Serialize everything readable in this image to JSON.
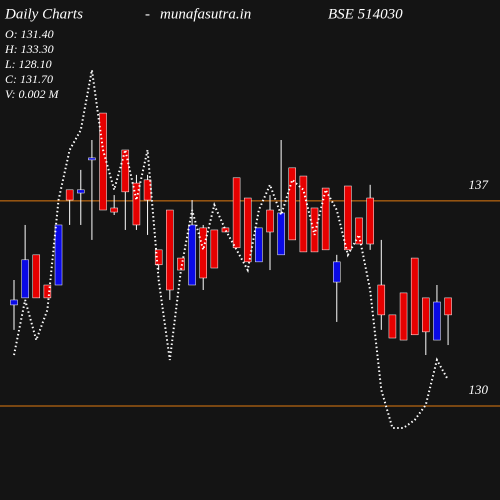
{
  "chart_data": {
    "type": "candlestick",
    "title": "Daily Charts",
    "separator": "-",
    "site": "munafasutra.in",
    "symbol": "BSE 514030",
    "info": [
      "O: 131.40",
      "H: 133.30",
      "L: 128.10",
      "C: 131.70",
      "V: 0.002  M"
    ],
    "open": [
      133.45,
      133.69,
      135.16,
      134.13,
      134.13,
      137.38,
      137.27,
      138.4,
      140.0,
      136.76,
      138.74,
      137.61,
      137.72,
      135.33,
      136.69,
      135.05,
      134.13,
      136.08,
      136.01,
      136.08,
      137.79,
      137.1,
      134.92,
      136.69,
      135.16,
      138.13,
      137.85,
      136.76,
      137.44,
      134.23,
      137.51,
      136.42,
      137.1,
      134.13,
      133.11,
      133.86,
      135.05,
      133.69,
      132.25,
      133.69
    ],
    "high": [
      134.3,
      136.18,
      135.16,
      134.13,
      136.18,
      137.38,
      138.06,
      139.08,
      140.0,
      137.2,
      138.74,
      137.89,
      137.89,
      135.33,
      136.69,
      135.05,
      137.03,
      136.18,
      136.01,
      136.08,
      137.79,
      137.1,
      136.08,
      137.2,
      139.08,
      138.13,
      137.85,
      136.76,
      137.44,
      135.16,
      137.51,
      136.42,
      137.55,
      135.67,
      133.11,
      133.86,
      135.05,
      133.69,
      134.13,
      133.69
    ],
    "low": [
      132.6,
      133.69,
      133.69,
      133.69,
      134.13,
      136.18,
      136.18,
      135.67,
      136.69,
      136.52,
      136.01,
      136.01,
      135.84,
      134.64,
      133.62,
      134.64,
      134.13,
      133.96,
      134.71,
      135.94,
      135.4,
      134.92,
      134.92,
      134.64,
      135.16,
      135.67,
      135.26,
      135.26,
      135.33,
      132.87,
      135.33,
      135.53,
      135.33,
      132.6,
      132.32,
      132.25,
      132.43,
      131.74,
      132.25,
      132.08
    ],
    "close": [
      133.62,
      134.99,
      133.69,
      133.69,
      136.18,
      137.03,
      137.38,
      138.47,
      136.69,
      136.62,
      137.31,
      136.18,
      137.03,
      134.82,
      133.96,
      134.64,
      136.18,
      134.37,
      134.71,
      135.94,
      135.4,
      134.92,
      136.08,
      135.94,
      136.59,
      135.67,
      135.26,
      135.26,
      135.33,
      134.92,
      135.33,
      135.53,
      135.53,
      133.11,
      132.32,
      132.25,
      132.43,
      132.53,
      133.55,
      133.11
    ],
    "line_values": [
      131.74,
      133.62,
      132.25,
      133.28,
      137.03,
      138.74,
      139.42,
      141.47,
      138.74,
      137.38,
      138.74,
      137.03,
      138.74,
      134.3,
      131.57,
      134.64,
      136.69,
      135.33,
      136.86,
      136.01,
      135.33,
      134.64,
      136.69,
      137.55,
      136.52,
      137.72,
      137.38,
      135.84,
      137.38,
      136.69,
      135.16,
      135.84,
      133.96,
      130.55,
      129.25,
      129.25,
      129.52,
      130.04,
      131.57,
      130.89
    ],
    "up_color": "#0a0ae6",
    "down_color": "#e60000",
    "line_color": "#ffffff",
    "grid_color": "#e07a10",
    "ylim": [
      126.79,
      143.86
    ],
    "yticks": [
      130,
      137
    ],
    "grid": true
  }
}
